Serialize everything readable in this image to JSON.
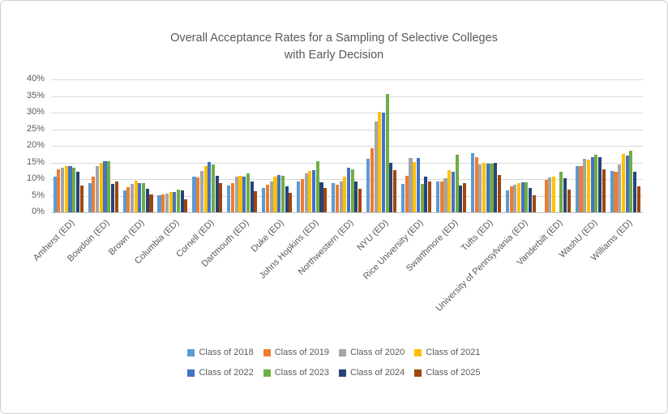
{
  "chart_data": {
    "type": "bar",
    "title": "Overall Acceptance Rates for a Sampling of Selective Colleges with Early Decision",
    "title_lines": [
      "Overall Acceptance Rates for a Sampling of Selective Colleges",
      "with Early Decision"
    ],
    "xlabel": "",
    "ylabel": "",
    "ylim": [
      0,
      40
    ],
    "ytick_step": 5,
    "y_ticks": [
      "0%",
      "5%",
      "10%",
      "15%",
      "20%",
      "25%",
      "30%",
      "35%",
      "40%"
    ],
    "grid": true,
    "legend_position": "bottom",
    "categories": [
      "Amherst (ED)",
      "Bowdoin (ED)",
      "Brown (ED)",
      "Columbia (ED)",
      "Cornell (ED)",
      "Dartmouth (ED)",
      "Duke (ED)",
      "Johns Hopkins (ED)",
      "Northwestern (ED)",
      "NYU (ED)",
      "Rice University (ED)",
      "Swarthmore (ED)",
      "Tufts (ED)",
      "University of Pennsylvania (ED)",
      "Vanderbilt (ED)",
      "WashU (ED)",
      "Williams (ED)"
    ],
    "series": [
      {
        "name": "Class of 2018",
        "color": "#5B9BD5",
        "values": [
          10.8,
          8.9,
          6.6,
          5.2,
          10.7,
          8.0,
          7.3,
          9.3,
          8.8,
          16.2,
          8.6,
          9.3,
          17.8,
          6.7,
          null,
          13.9,
          12.5
        ]
      },
      {
        "name": "Class of 2019",
        "color": "#ED7D31",
        "values": [
          13.0,
          10.7,
          7.5,
          5.3,
          10.5,
          8.9,
          8.4,
          10.0,
          8.4,
          19.2,
          11.0,
          9.3,
          16.6,
          7.9,
          9.8,
          14.0,
          12.2
        ]
      },
      {
        "name": "Class of 2020",
        "color": "#A5A5A5",
        "values": [
          13.4,
          13.9,
          8.5,
          5.5,
          12.4,
          10.7,
          9.3,
          11.7,
          9.3,
          27.2,
          16.3,
          10.3,
          14.3,
          8.3,
          10.4,
          16.1,
          14.5
        ]
      },
      {
        "name": "Class of 2021",
        "color": "#FFC000",
        "values": [
          13.9,
          14.8,
          9.4,
          6.0,
          13.9,
          11.0,
          10.8,
          12.4,
          10.7,
          30.3,
          15.2,
          12.8,
          14.8,
          8.8,
          10.7,
          15.9,
          17.5
        ]
      },
      {
        "name": "Class of 2022",
        "color": "#4472C4",
        "values": [
          14.0,
          15.3,
          8.7,
          6.2,
          15.2,
          10.7,
          11.2,
          12.8,
          13.4,
          30.1,
          16.3,
          12.3,
          14.6,
          9.1,
          null,
          16.6,
          17.0
        ]
      },
      {
        "name": "Class of 2023",
        "color": "#70AD47",
        "values": [
          13.3,
          15.3,
          8.7,
          6.9,
          14.3,
          11.8,
          11.0,
          15.3,
          13.0,
          35.5,
          8.6,
          17.3,
          14.7,
          9.1,
          12.2,
          17.4,
          18.5
        ]
      },
      {
        "name": "Class of 2024",
        "color": "#264478",
        "values": [
          12.2,
          8.6,
          7.0,
          6.5,
          11.0,
          9.3,
          7.7,
          9.1,
          9.3,
          15.0,
          10.8,
          8.0,
          14.9,
          7.2,
          10.3,
          16.7,
          12.1
        ]
      },
      {
        "name": "Class of 2025",
        "color": "#9E480E",
        "values": [
          8.0,
          9.2,
          5.4,
          3.9,
          8.7,
          6.3,
          5.9,
          7.4,
          7.0,
          12.8,
          9.3,
          8.9,
          11.1,
          5.2,
          6.9,
          12.9,
          7.9
        ]
      }
    ],
    "legend_rows": [
      [
        "Class of 2018",
        "Class of 2019",
        "Class of 2020",
        "Class of 2021"
      ],
      [
        "Class of 2022",
        "Class of 2023",
        "Class of 2024",
        "Class of 2025"
      ]
    ],
    "colors": {
      "text": "#595959",
      "grid": "#D9D9D9",
      "axis": "#BFBFBF",
      "background": "#FFFFFF",
      "frame_border": "#CFCFCF"
    }
  }
}
